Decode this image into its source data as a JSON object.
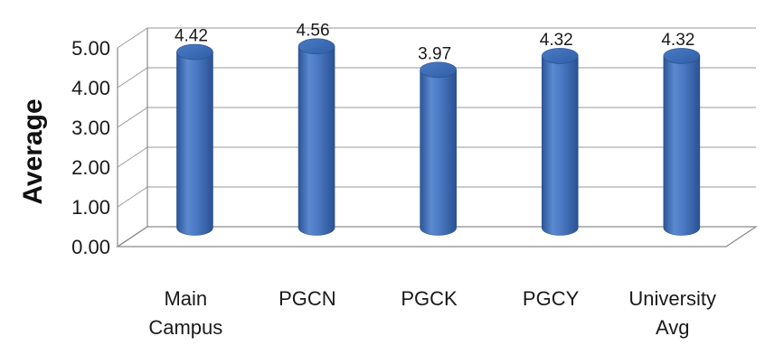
{
  "chart_data": {
    "type": "bar",
    "style": "3d-cylinder",
    "title": "",
    "xlabel": "",
    "ylabel": "Average",
    "ylim": [
      0,
      5
    ],
    "yticks": [
      "0.00",
      "1.00",
      "2.00",
      "3.00",
      "4.00",
      "5.00"
    ],
    "grid": true,
    "legend": "none",
    "bar_color": "#4a78c2",
    "categories": [
      [
        "Main",
        "Campus"
      ],
      [
        "PGCN"
      ],
      [
        "PGCK"
      ],
      [
        "PGCY"
      ],
      [
        "University",
        "Avg"
      ]
    ],
    "values": [
      4.42,
      4.56,
      3.97,
      4.32,
      4.32
    ],
    "data_labels": [
      "4.42",
      "4.56",
      "3.97",
      "4.32",
      "4.32"
    ]
  }
}
